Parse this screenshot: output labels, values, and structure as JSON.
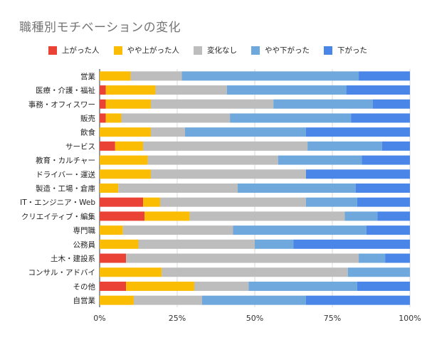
{
  "chart_data": {
    "type": "bar",
    "orientation": "horizontal",
    "stacked": "percent",
    "title": "職種別モチベーションの変化",
    "xlabel": "",
    "ylabel": "",
    "xlim": [
      0,
      100
    ],
    "ticks": [
      "0%",
      "25%",
      "50%",
      "75%",
      "100%"
    ],
    "tick_values": [
      0,
      25,
      50,
      75,
      100
    ],
    "grid": true,
    "legend_position": "top",
    "categories": [
      "営業",
      "医療・介護・福祉",
      "事務・オフィスワー",
      "販売",
      "飲食",
      "サービス",
      "教育・カルチャー",
      "ドライバー・運送",
      "製造・工場・倉庫",
      "IT・エンジニア・Web",
      "クリエイティブ・編集",
      "専門職",
      "公務員",
      "土木・建設系",
      "コンサル・アドバイ",
      "その他",
      "自営業"
    ],
    "series": [
      {
        "name": "上がった人",
        "color": "#ea4335",
        "values": [
          0,
          2,
          2,
          2,
          0,
          5,
          0,
          0,
          0,
          14,
          14.5,
          0,
          0,
          8.5,
          0,
          8.5,
          0
        ]
      },
      {
        "name": "やや上がった人",
        "color": "#fbbc04",
        "values": [
          10,
          16,
          14.5,
          5,
          16.5,
          9,
          15.5,
          16.5,
          6,
          5.5,
          14.5,
          7.5,
          12.5,
          0,
          20,
          22,
          11
        ]
      },
      {
        "name": "変化なし",
        "color": "#bdbdbd",
        "values": [
          16.5,
          23,
          39.5,
          35,
          11,
          53,
          42,
          50,
          38.5,
          47,
          50,
          35.5,
          37.5,
          75,
          60,
          17.5,
          22
        ]
      },
      {
        "name": "やや下がった",
        "color": "#6fa8dc",
        "values": [
          57,
          38.5,
          32,
          39,
          39,
          24,
          27,
          0,
          38,
          16.5,
          10.5,
          43,
          12.5,
          8.5,
          20,
          35,
          33.5
        ]
      },
      {
        "name": "下がった",
        "color": "#4a86e8",
        "values": [
          16.5,
          20.5,
          12,
          19,
          33.5,
          9,
          15.5,
          33.5,
          17.5,
          17,
          10.5,
          14,
          37.5,
          8,
          0,
          17,
          33.5
        ]
      }
    ]
  }
}
